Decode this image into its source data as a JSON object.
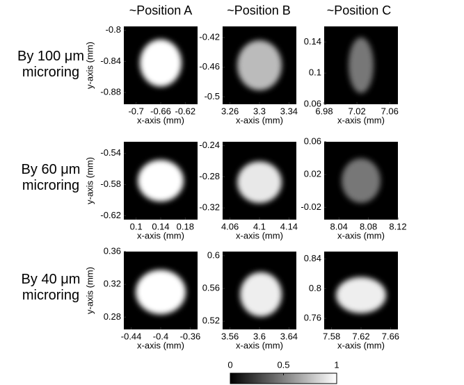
{
  "column_titles": [
    "~Position A",
    "~Position B",
    "~Position C"
  ],
  "row_labels": [
    "By 100 μm microring",
    "By 60 μm microring",
    "By 40 μm microring"
  ],
  "chart_data": [
    {
      "type": "image",
      "xlabel": "x-axis (mm)",
      "ylabel": "y-axis (mm)",
      "xlim": [
        -0.72,
        -0.6
      ],
      "xticks": [
        -0.7,
        -0.66,
        -0.62
      ],
      "ylim": [
        -0.895,
        -0.795
      ],
      "yticks": [
        -0.88,
        -0.84,
        -0.8
      ]
    },
    {
      "type": "image",
      "xlabel": "x-axis (mm)",
      "xlim": [
        3.25,
        3.35
      ],
      "xticks": [
        3.26,
        3.3,
        3.34
      ],
      "ylim": [
        -0.51,
        -0.405
      ],
      "yticks": [
        -0.5,
        -0.46,
        -0.42
      ]
    },
    {
      "type": "image",
      "xlabel": "x-axis (mm)",
      "xlim": [
        6.98,
        7.07
      ],
      "xticks": [
        6.98,
        7.02,
        7.06
      ],
      "ylim": [
        0.06,
        0.16
      ],
      "yticks": [
        0.06,
        0.1,
        0.14
      ]
    },
    {
      "type": "image",
      "xlabel": "x-axis (mm)",
      "ylabel": "y-axis (mm)",
      "xlim": [
        0.08,
        0.2
      ],
      "xticks": [
        0.1,
        0.14,
        0.18
      ],
      "ylim": [
        -0.625,
        -0.525
      ],
      "yticks": [
        -0.62,
        -0.58,
        -0.54
      ]
    },
    {
      "type": "image",
      "xlabel": "x-axis (mm)",
      "xlim": [
        4.05,
        4.15
      ],
      "xticks": [
        4.06,
        4.1,
        4.14
      ],
      "ylim": [
        -0.335,
        -0.235
      ],
      "yticks": [
        -0.32,
        -0.28,
        -0.24
      ]
    },
    {
      "type": "image",
      "xlabel": "x-axis (mm)",
      "xlim": [
        8.02,
        8.12
      ],
      "xticks": [
        8.04,
        8.08,
        8.12
      ],
      "ylim": [
        -0.035,
        0.06
      ],
      "yticks": [
        -0.02,
        0.02,
        0.06
      ]
    },
    {
      "type": "image",
      "xlabel": "x-axis (mm)",
      "ylabel": "y-axis (mm)",
      "xlim": [
        -0.45,
        -0.35
      ],
      "xticks": [
        -0.44,
        -0.4,
        -0.36
      ],
      "ylim": [
        0.265,
        0.36
      ],
      "yticks": [
        0.28,
        0.32,
        0.36
      ]
    },
    {
      "type": "image",
      "xlabel": "x-axis (mm)",
      "xlim": [
        3.55,
        3.65
      ],
      "xticks": [
        3.56,
        3.6,
        3.64
      ],
      "ylim": [
        0.51,
        0.605
      ],
      "yticks": [
        0.52,
        0.56,
        0.6
      ]
    },
    {
      "type": "image",
      "xlabel": "x-axis (mm)",
      "xlim": [
        7.57,
        7.67
      ],
      "xticks": [
        7.58,
        7.62,
        7.66
      ],
      "ylim": [
        0.745,
        0.85
      ],
      "yticks": [
        0.76,
        0.8,
        0.84
      ]
    },
    {
      "type": "colorbar",
      "xlim": [
        0,
        1
      ],
      "xticks": [
        0,
        0.5,
        1
      ]
    }
  ]
}
